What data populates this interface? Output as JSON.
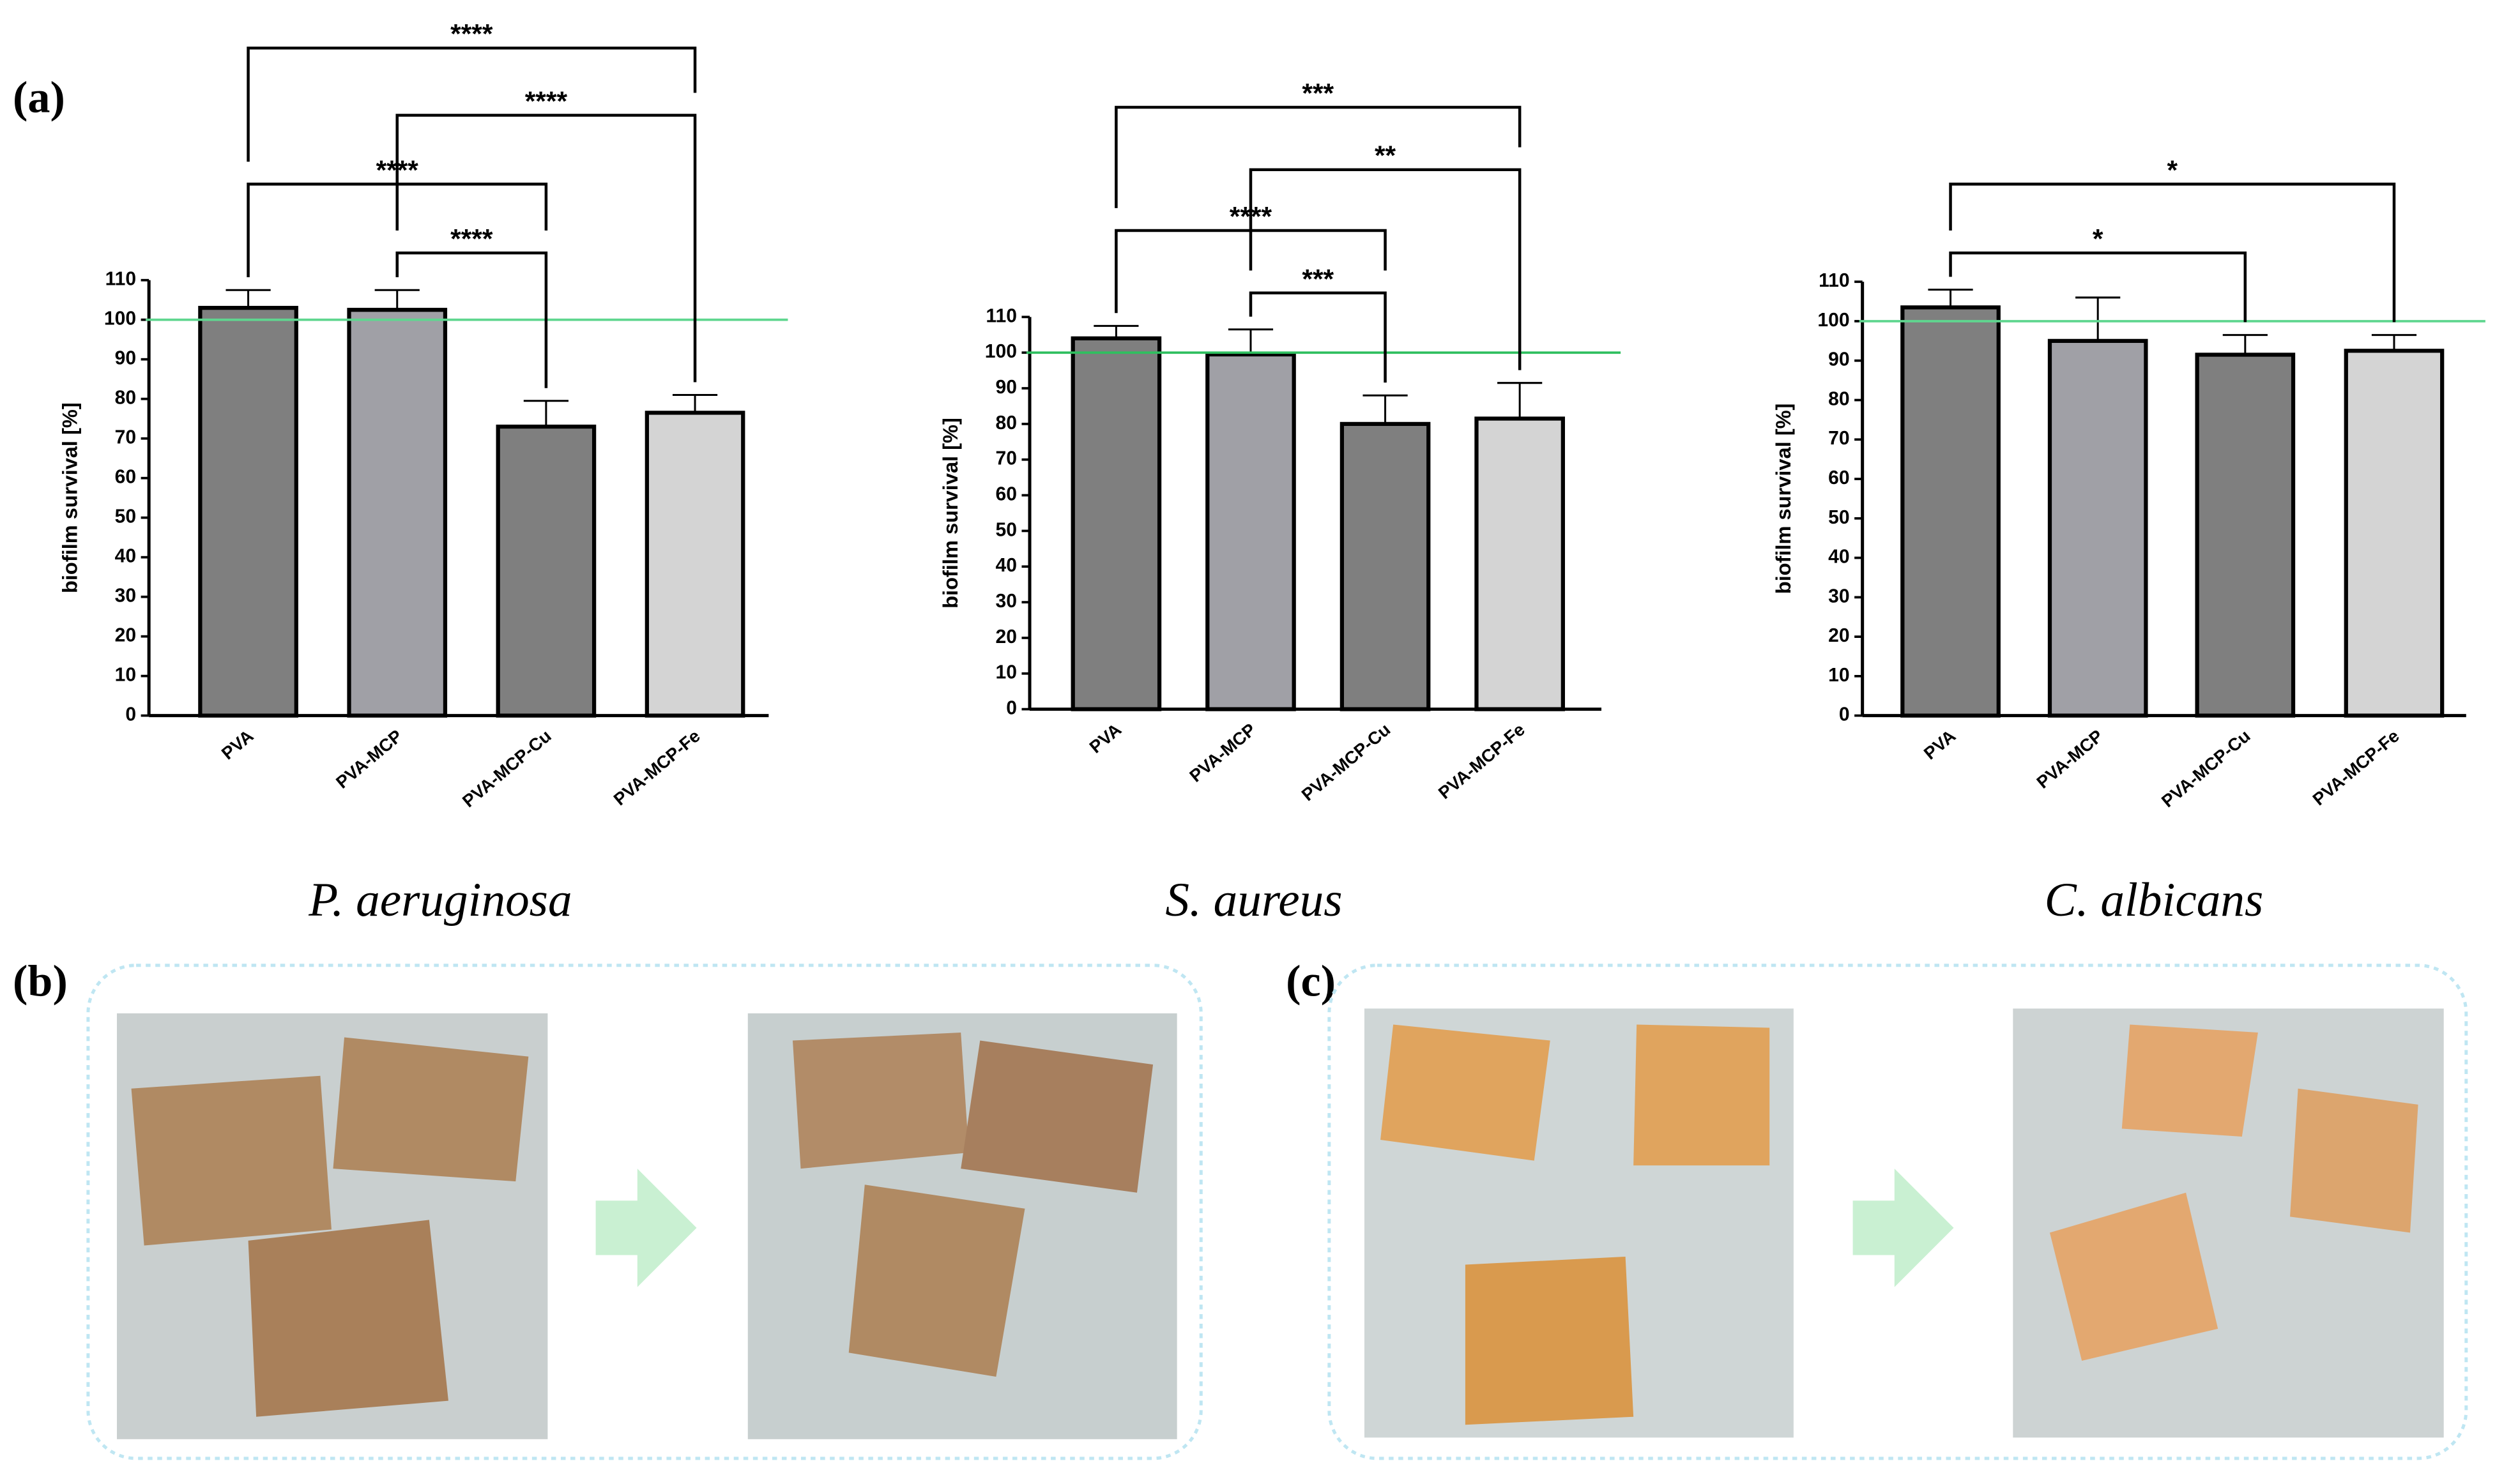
{
  "panel_labels": [
    "(a)",
    "(b)",
    "(c)"
  ],
  "chart_data": [
    {
      "type": "bar",
      "title": "P. aeruginosa",
      "ylabel": "biofilm survival [%]",
      "categories": [
        "PVA",
        "PVA-MCP",
        "PVA-MCP-Cu",
        "PVA-MCP-Fe"
      ],
      "values": [
        103,
        102.5,
        73,
        76.5
      ],
      "errors": [
        4.5,
        5,
        6.5,
        4.5
      ],
      "colors": [
        "#7f7f7f",
        "#a0a0a6",
        "#7f7f7f",
        "#d4d4d4"
      ],
      "ylim": [
        0,
        110
      ],
      "yticks": [
        0,
        10,
        20,
        30,
        40,
        50,
        60,
        70,
        80,
        90,
        100,
        110
      ],
      "reference_line": {
        "value": 100,
        "color": "#5fd68f"
      },
      "significance": [
        {
          "from": 0,
          "to": 3,
          "label": "****"
        },
        {
          "from": 1,
          "to": 3,
          "label": "****"
        },
        {
          "from": 0,
          "to": 2,
          "label": "****"
        },
        {
          "from": 1,
          "to": 2,
          "label": "****"
        }
      ]
    },
    {
      "type": "bar",
      "title": "S. aureus",
      "ylabel": "biofilm survival [%]",
      "categories": [
        "PVA",
        "PVA-MCP",
        "PVA-MCP-Cu",
        "PVA-MCP-Fe"
      ],
      "values": [
        104,
        99.5,
        80,
        81.5
      ],
      "errors": [
        3.5,
        7,
        8,
        10
      ],
      "colors": [
        "#7f7f7f",
        "#a0a0a6",
        "#7f7f7f",
        "#d4d4d4"
      ],
      "ylim": [
        0,
        110
      ],
      "yticks": [
        0,
        10,
        20,
        30,
        40,
        50,
        60,
        70,
        80,
        90,
        100,
        110
      ],
      "reference_line": {
        "value": 100,
        "color": "#2fbf5f"
      },
      "significance": [
        {
          "from": 0,
          "to": 3,
          "label": "***"
        },
        {
          "from": 1,
          "to": 3,
          "label": "**"
        },
        {
          "from": 0,
          "to": 2,
          "label": "****"
        },
        {
          "from": 1,
          "to": 2,
          "label": "***"
        }
      ]
    },
    {
      "type": "bar",
      "title": "C. albicans",
      "ylabel": "biofilm survival [%]",
      "categories": [
        "PVA",
        "PVA-MCP",
        "PVA-MCP-Cu",
        "PVA-MCP-Fe"
      ],
      "values": [
        103.5,
        95,
        91.5,
        92.5
      ],
      "errors": [
        4.5,
        11,
        5,
        4
      ],
      "colors": [
        "#7f7f7f",
        "#a0a0a6",
        "#7f7f7f",
        "#d4d4d4"
      ],
      "ylim": [
        0,
        110
      ],
      "yticks": [
        0,
        10,
        20,
        30,
        40,
        50,
        60,
        70,
        80,
        90,
        100,
        110
      ],
      "reference_line": {
        "value": 100,
        "color": "#5fd68f"
      },
      "significance": [
        {
          "from": 0,
          "to": 3,
          "label": "*"
        },
        {
          "from": 0,
          "to": 2,
          "label": "*"
        }
      ]
    }
  ]
}
